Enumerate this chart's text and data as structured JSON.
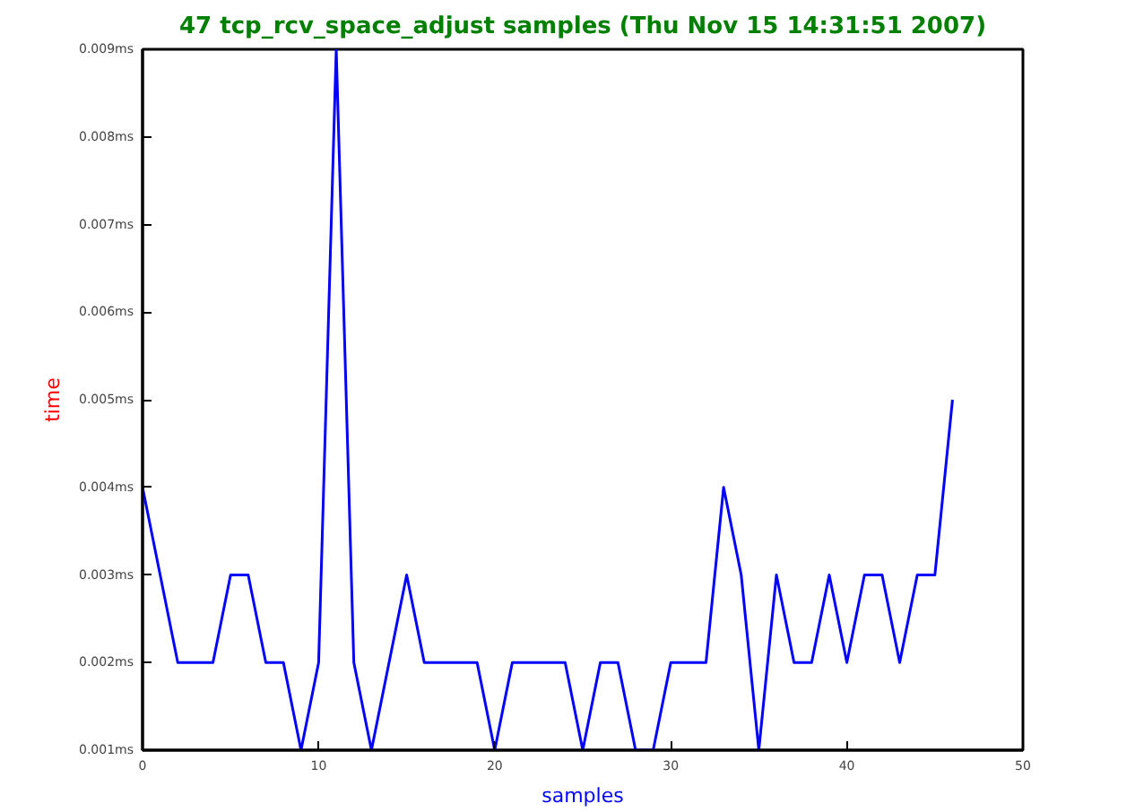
{
  "chart_data": {
    "type": "line",
    "title": "47 tcp_rcv_space_adjust samples (Thu Nov 15 14:31:51 2007)",
    "xlabel": "samples",
    "ylabel": "time",
    "x": [
      0,
      1,
      2,
      3,
      4,
      5,
      6,
      7,
      8,
      9,
      10,
      11,
      12,
      13,
      14,
      15,
      16,
      17,
      18,
      19,
      20,
      21,
      22,
      23,
      24,
      25,
      26,
      27,
      28,
      29,
      30,
      31,
      32,
      33,
      34,
      35,
      36,
      37,
      38,
      39,
      40,
      41,
      42,
      43,
      44,
      45,
      46
    ],
    "series": [
      {
        "color": "#0000ff",
        "values": [
          0.004,
          0.003,
          0.002,
          0.002,
          0.002,
          0.003,
          0.003,
          0.002,
          0.002,
          0.001,
          0.002,
          0.009,
          0.002,
          0.001,
          0.002,
          0.003,
          0.002,
          0.002,
          0.002,
          0.002,
          0.001,
          0.002,
          0.002,
          0.002,
          0.002,
          0.001,
          0.002,
          0.002,
          0.001,
          0.001,
          0.002,
          0.002,
          0.002,
          0.004,
          0.003,
          0.001,
          0.003,
          0.002,
          0.002,
          0.003,
          0.002,
          0.003,
          0.003,
          0.002,
          0.003,
          0.003,
          0.005
        ]
      }
    ],
    "xlim": [
      0,
      50
    ],
    "xticks": [
      0,
      10,
      20,
      30,
      40,
      50
    ],
    "ylim": [
      0.001,
      0.009
    ],
    "yticks": [
      {
        "value": 0.001,
        "label": "0.001ms"
      },
      {
        "value": 0.002,
        "label": "0.002ms"
      },
      {
        "value": 0.003,
        "label": "0.003ms"
      },
      {
        "value": 0.004,
        "label": "0.004ms"
      },
      {
        "value": 0.005,
        "label": "0.005ms"
      },
      {
        "value": 0.006,
        "label": "0.006ms"
      },
      {
        "value": 0.007,
        "label": "0.007ms"
      },
      {
        "value": 0.008,
        "label": "0.008ms"
      },
      {
        "value": 0.009,
        "label": "0.009ms"
      }
    ],
    "grid": false,
    "marker": "none",
    "line_style": "solid"
  }
}
